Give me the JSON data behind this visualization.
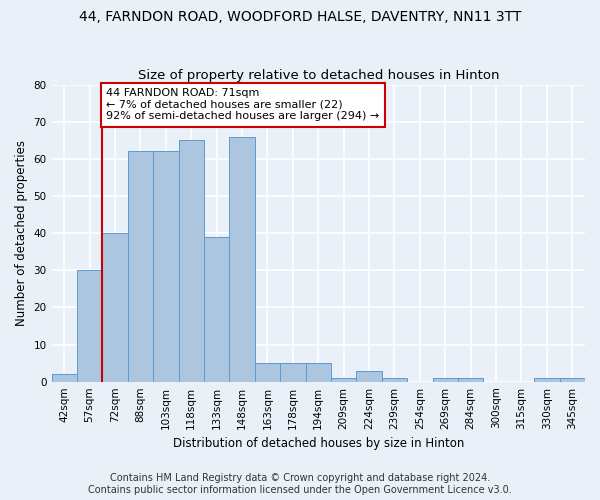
{
  "title": "44, FARNDON ROAD, WOODFORD HALSE, DAVENTRY, NN11 3TT",
  "subtitle": "Size of property relative to detached houses in Hinton",
  "xlabel": "Distribution of detached houses by size in Hinton",
  "ylabel": "Number of detached properties",
  "categories": [
    "42sqm",
    "57sqm",
    "72sqm",
    "88sqm",
    "103sqm",
    "118sqm",
    "133sqm",
    "148sqm",
    "163sqm",
    "178sqm",
    "194sqm",
    "209sqm",
    "224sqm",
    "239sqm",
    "254sqm",
    "269sqm",
    "284sqm",
    "300sqm",
    "315sqm",
    "330sqm",
    "345sqm"
  ],
  "values": [
    2,
    30,
    40,
    62,
    62,
    65,
    39,
    66,
    5,
    5,
    5,
    1,
    3,
    1,
    0,
    1,
    1,
    0,
    0,
    1,
    1
  ],
  "bar_color": "#adc6e0",
  "bar_edge_color": "#5b9bd5",
  "annotation_text": "44 FARNDON ROAD: 71sqm\n← 7% of detached houses are smaller (22)\n92% of semi-detached houses are larger (294) →",
  "annotation_box_color": "#ffffff",
  "annotation_box_edge": "#cc0000",
  "vline_color": "#cc0000",
  "vline_x_bin": 1.5,
  "ylim": [
    0,
    80
  ],
  "yticks": [
    0,
    10,
    20,
    30,
    40,
    50,
    60,
    70,
    80
  ],
  "footer_line1": "Contains HM Land Registry data © Crown copyright and database right 2024.",
  "footer_line2": "Contains public sector information licensed under the Open Government Licence v3.0.",
  "bg_color": "#eaf0f8",
  "plot_bg_color": "#eaf0f8",
  "grid_color": "#ffffff",
  "title_fontsize": 10,
  "subtitle_fontsize": 9.5,
  "axis_label_fontsize": 8.5,
  "tick_fontsize": 7.5,
  "footer_fontsize": 7,
  "annotation_fontsize": 8
}
